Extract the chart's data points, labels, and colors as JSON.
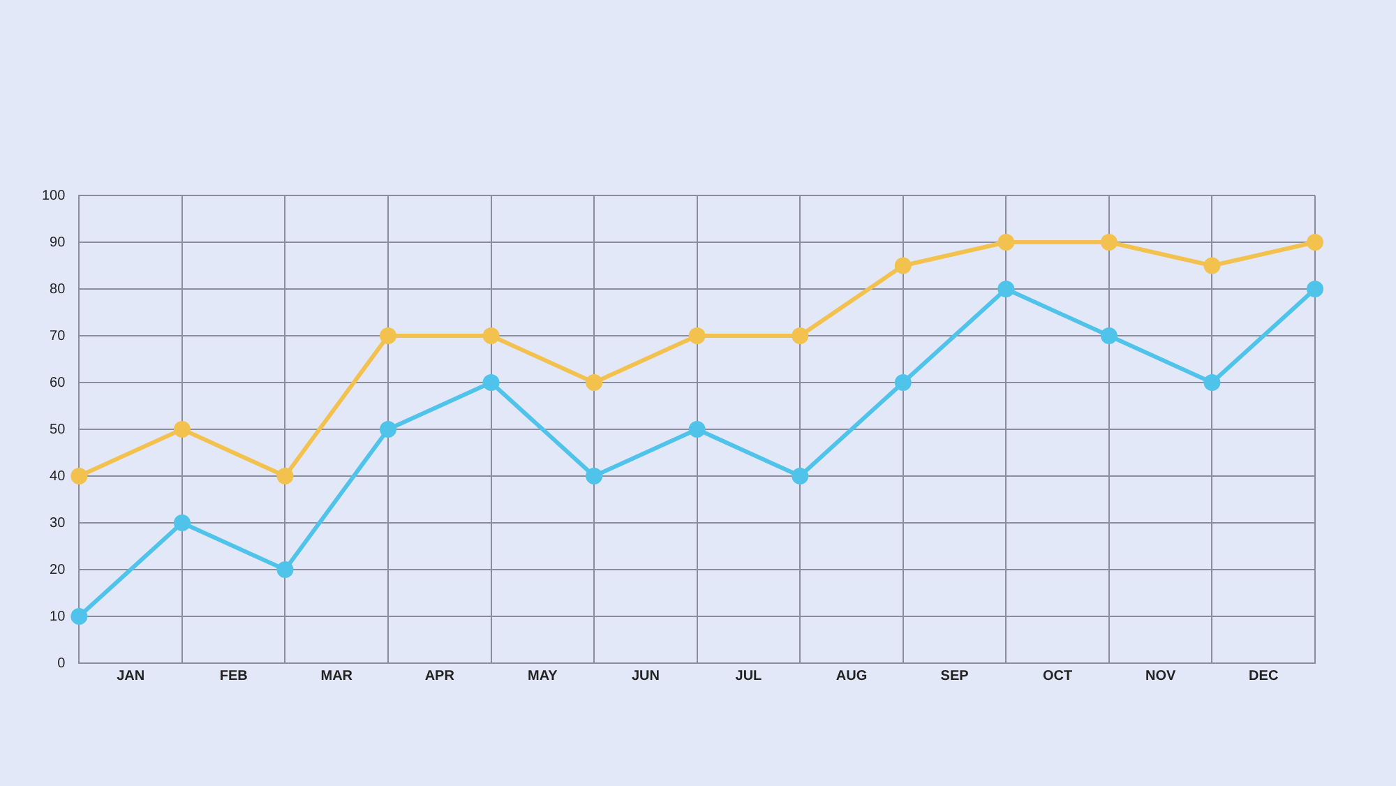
{
  "chart_data": {
    "type": "line",
    "categories": [
      null,
      "JAN",
      null,
      "FEB",
      null,
      "MAR",
      null,
      "APR",
      null,
      "MAY",
      null,
      "JUN",
      null,
      "JUL",
      null,
      "AUG",
      null,
      "SEP",
      null,
      "OCT",
      null,
      "NOV",
      null,
      "DEC",
      null
    ],
    "ylim": [
      0,
      100
    ],
    "yticks": [
      0,
      10,
      20,
      30,
      40,
      50,
      60,
      70,
      80,
      90,
      100
    ],
    "series": [
      {
        "color": "#f2c14e",
        "values": [
          40,
          null,
          50,
          null,
          40,
          null,
          70,
          null,
          70,
          null,
          60,
          null,
          70,
          null,
          70,
          null,
          85,
          null,
          90,
          null,
          90,
          null,
          85,
          null,
          90
        ]
      },
      {
        "color": "#4fc3ea",
        "values": [
          10,
          null,
          30,
          null,
          20,
          null,
          50,
          null,
          60,
          null,
          40,
          null,
          50,
          null,
          40,
          null,
          60,
          null,
          80,
          null,
          70,
          null,
          60,
          null,
          80
        ]
      }
    ],
    "grid": true,
    "marker": "circle",
    "line_style": "solid"
  }
}
